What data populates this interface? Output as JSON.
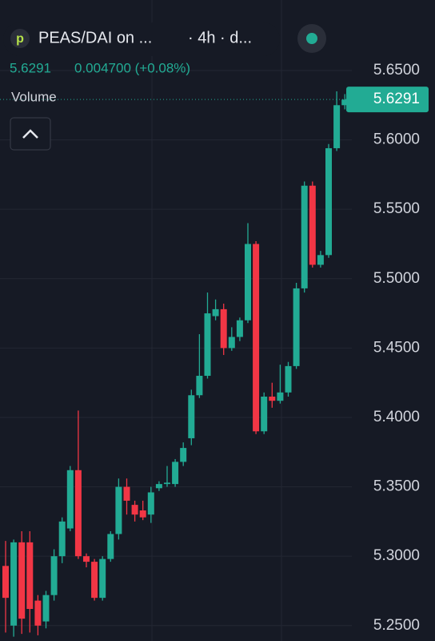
{
  "chart_data": {
    "type": "candlestick",
    "title": "PEAS/DAI on ...",
    "subtitle": "· 4h · d...",
    "last_price": 5.6291,
    "change": "0.004700 (+0.08%)",
    "volume_label": "Volume",
    "up_color": "#22ab94",
    "down_color": "#f23645",
    "open": [
      5.293,
      5.25,
      5.31,
      5.31,
      5.268,
      5.253,
      5.272,
      5.3,
      5.32,
      5.362,
      5.3,
      5.296,
      5.27,
      5.298,
      5.316,
      5.35,
      5.337,
      5.333,
      5.33,
      5.349,
      5.352,
      5.352,
      5.368,
      5.385,
      5.416,
      5.43,
      5.473,
      5.478,
      5.45,
      5.458,
      5.47,
      5.525,
      5.39,
      5.415,
      5.412,
      5.418,
      5.437,
      5.493,
      5.567,
      5.51,
      5.517,
      5.594,
      5.625
    ],
    "high": [
      5.311,
      5.312,
      5.318,
      5.318,
      5.272,
      5.275,
      5.305,
      5.328,
      5.365,
      5.405,
      5.302,
      5.298,
      5.3,
      5.318,
      5.356,
      5.356,
      5.34,
      5.34,
      5.35,
      5.354,
      5.365,
      5.37,
      5.382,
      5.42,
      5.46,
      5.49,
      5.485,
      5.482,
      5.465,
      5.472,
      5.54,
      5.527,
      5.418,
      5.425,
      5.438,
      5.44,
      5.497,
      5.57,
      5.57,
      5.52,
      5.597,
      5.635,
      5.633
    ],
    "low": [
      5.245,
      5.242,
      5.244,
      5.245,
      5.243,
      5.248,
      5.268,
      5.295,
      5.318,
      5.298,
      5.292,
      5.268,
      5.268,
      5.296,
      5.312,
      5.33,
      5.325,
      5.326,
      5.324,
      5.347,
      5.35,
      5.35,
      5.365,
      5.38,
      5.414,
      5.428,
      5.47,
      5.445,
      5.448,
      5.455,
      5.468,
      5.388,
      5.388,
      5.407,
      5.41,
      5.415,
      5.435,
      5.49,
      5.508,
      5.508,
      5.515,
      5.592,
      5.622
    ],
    "close": [
      5.27,
      5.31,
      5.255,
      5.262,
      5.25,
      5.272,
      5.3,
      5.325,
      5.362,
      5.3,
      5.296,
      5.27,
      5.298,
      5.316,
      5.35,
      5.34,
      5.33,
      5.328,
      5.346,
      5.352,
      5.353,
      5.368,
      5.378,
      5.416,
      5.43,
      5.475,
      5.478,
      5.45,
      5.458,
      5.47,
      5.525,
      5.39,
      5.415,
      5.412,
      5.418,
      5.437,
      5.493,
      5.567,
      5.51,
      5.517,
      5.594,
      5.625,
      5.629
    ],
    "ylim": [
      5.2389,
      5.7008
    ],
    "yticks": [
      {
        "value": 5.25,
        "label": "5.2500"
      },
      {
        "value": 5.3,
        "label": "5.3000"
      },
      {
        "value": 5.35,
        "label": "5.3500"
      },
      {
        "value": 5.4,
        "label": "5.4000"
      },
      {
        "value": 5.45,
        "label": "5.4500"
      },
      {
        "value": 5.5,
        "label": "5.5000"
      },
      {
        "value": 5.55,
        "label": "5.5500"
      },
      {
        "value": 5.6,
        "label": "5.6000"
      },
      {
        "value": 5.65,
        "label": "5.6500"
      }
    ],
    "grid": true
  }
}
